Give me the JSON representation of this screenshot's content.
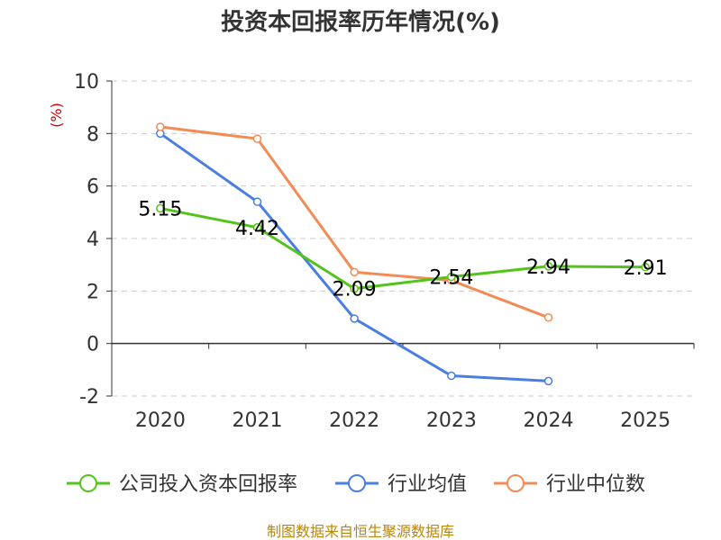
{
  "chart_data": {
    "type": "line",
    "title": "投资本回报率历年情况(%)",
    "ylabel": "(%)",
    "xlabel": "",
    "categories": [
      "2020",
      "2021",
      "2022",
      "2023",
      "2024",
      "2025"
    ],
    "ylim": [
      -2,
      10
    ],
    "yticks": [
      "-2",
      "0",
      "2",
      "4",
      "6",
      "8",
      "10"
    ],
    "grid": true,
    "legend_position": "bottom",
    "series": [
      {
        "name": "公司投入资本回报率",
        "color": "#52c41a",
        "values": [
          5.15,
          4.42,
          2.09,
          2.54,
          2.94,
          2.91
        ],
        "labels": [
          "5.15",
          "4.42",
          "2.09",
          "2.54",
          "2.94",
          "2.91"
        ]
      },
      {
        "name": "行业均值",
        "color": "#4a7ee0",
        "values": [
          8.0,
          5.4,
          0.95,
          -1.23,
          -1.43,
          null
        ]
      },
      {
        "name": "行业中位数",
        "color": "#f28c55",
        "values": [
          8.25,
          7.8,
          2.72,
          2.4,
          0.99,
          null
        ]
      }
    ]
  },
  "source": "制图数据来自恒生聚源数据库"
}
